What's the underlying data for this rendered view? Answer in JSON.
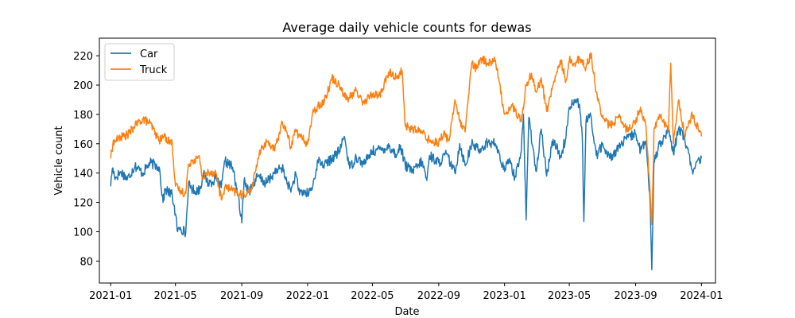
{
  "chart_data": {
    "type": "line",
    "title": "Average daily vehicle counts for dewas",
    "xlabel": "Date",
    "ylabel": "Vehicle count",
    "xlim": [
      "2020-12-11",
      "2024-01-27"
    ],
    "ylim": [
      65,
      232
    ],
    "x_ticks": [
      "2021-01",
      "2021-05",
      "2021-09",
      "2022-01",
      "2022-05",
      "2022-09",
      "2023-01",
      "2023-05",
      "2023-09",
      "2024-01"
    ],
    "y_ticks": [
      80,
      100,
      120,
      140,
      160,
      180,
      200,
      220
    ],
    "grid": false,
    "legend_position": "upper left",
    "x_start": "2021-01-01",
    "x_end": "2024-01-01",
    "series": [
      {
        "name": "Car",
        "color": "#1f77b4",
        "points": [
          [
            "2021-01-01",
            131
          ],
          [
            "2021-01-04",
            143
          ],
          [
            "2021-01-10",
            137
          ],
          [
            "2021-01-20",
            141
          ],
          [
            "2021-02-01",
            136
          ],
          [
            "2021-02-15",
            145
          ],
          [
            "2021-03-01",
            140
          ],
          [
            "2021-03-15",
            147
          ],
          [
            "2021-04-01",
            144
          ],
          [
            "2021-04-08",
            120
          ],
          [
            "2021-04-12",
            129
          ],
          [
            "2021-04-25",
            125
          ],
          [
            "2021-05-01",
            112
          ],
          [
            "2021-05-05",
            100
          ],
          [
            "2021-05-10",
            103
          ],
          [
            "2021-05-20",
            99
          ],
          [
            "2021-05-25",
            132
          ],
          [
            "2021-06-05",
            128
          ],
          [
            "2021-06-15",
            129
          ],
          [
            "2021-06-22",
            140
          ],
          [
            "2021-07-01",
            133
          ],
          [
            "2021-07-15",
            136
          ],
          [
            "2021-07-25",
            130
          ],
          [
            "2021-08-01",
            148
          ],
          [
            "2021-08-15",
            144
          ],
          [
            "2021-08-25",
            125
          ],
          [
            "2021-09-01",
            106
          ],
          [
            "2021-09-05",
            134
          ],
          [
            "2021-09-15",
            128
          ],
          [
            "2021-10-01",
            138
          ],
          [
            "2021-10-15",
            133
          ],
          [
            "2021-11-01",
            140
          ],
          [
            "2021-11-15",
            144
          ],
          [
            "2021-11-20",
            137
          ],
          [
            "2021-11-25",
            133
          ],
          [
            "2021-12-01",
            127
          ],
          [
            "2021-12-10",
            140
          ],
          [
            "2021-12-15",
            128
          ],
          [
            "2022-01-01",
            126
          ],
          [
            "2022-01-10",
            130
          ],
          [
            "2022-01-20",
            149
          ],
          [
            "2022-02-01",
            145
          ],
          [
            "2022-02-15",
            150
          ],
          [
            "2022-03-01",
            155
          ],
          [
            "2022-03-10",
            165
          ],
          [
            "2022-03-20",
            143
          ],
          [
            "2022-04-01",
            151
          ],
          [
            "2022-04-15",
            146
          ],
          [
            "2022-05-01",
            155
          ],
          [
            "2022-05-15",
            156
          ],
          [
            "2022-06-01",
            158
          ],
          [
            "2022-06-15",
            152
          ],
          [
            "2022-06-22",
            159
          ],
          [
            "2022-07-01",
            145
          ],
          [
            "2022-07-15",
            141
          ],
          [
            "2022-08-01",
            148
          ],
          [
            "2022-08-10",
            135
          ],
          [
            "2022-08-15",
            152
          ],
          [
            "2022-09-01",
            147
          ],
          [
            "2022-09-15",
            153
          ],
          [
            "2022-10-01",
            140
          ],
          [
            "2022-10-10",
            160
          ],
          [
            "2022-10-20",
            145
          ],
          [
            "2022-11-01",
            160
          ],
          [
            "2022-11-15",
            156
          ],
          [
            "2022-12-01",
            161
          ],
          [
            "2022-12-15",
            160
          ],
          [
            "2023-01-01",
            141
          ],
          [
            "2023-01-10",
            150
          ],
          [
            "2023-01-20",
            137
          ],
          [
            "2023-02-01",
            155
          ],
          [
            "2023-02-05",
            180
          ],
          [
            "2023-02-10",
            108
          ],
          [
            "2023-02-15",
            178
          ],
          [
            "2023-02-25",
            151
          ],
          [
            "2023-03-01",
            141
          ],
          [
            "2023-03-10",
            170
          ],
          [
            "2023-03-20",
            138
          ],
          [
            "2023-04-01",
            163
          ],
          [
            "2023-04-15",
            151
          ],
          [
            "2023-04-25",
            165
          ],
          [
            "2023-05-01",
            185
          ],
          [
            "2023-05-10",
            190
          ],
          [
            "2023-05-20",
            187
          ],
          [
            "2023-05-25",
            165
          ],
          [
            "2023-05-28",
            107
          ],
          [
            "2023-06-01",
            175
          ],
          [
            "2023-06-10",
            179
          ],
          [
            "2023-06-20",
            152
          ],
          [
            "2023-07-01",
            159
          ],
          [
            "2023-07-15",
            150
          ],
          [
            "2023-08-01",
            158
          ],
          [
            "2023-08-15",
            163
          ],
          [
            "2023-09-01",
            167
          ],
          [
            "2023-09-10",
            155
          ],
          [
            "2023-09-20",
            162
          ],
          [
            "2023-09-28",
            118
          ],
          [
            "2023-10-01",
            74
          ],
          [
            "2023-10-05",
            148
          ],
          [
            "2023-10-15",
            160
          ],
          [
            "2023-11-01",
            168
          ],
          [
            "2023-11-10",
            153
          ],
          [
            "2023-11-20",
            171
          ],
          [
            "2023-12-01",
            163
          ],
          [
            "2023-12-15",
            142
          ],
          [
            "2024-01-01",
            150
          ]
        ]
      },
      {
        "name": "Truck",
        "color": "#ff7f0e",
        "points": [
          [
            "2021-01-01",
            150
          ],
          [
            "2021-01-05",
            160
          ],
          [
            "2021-01-15",
            164
          ],
          [
            "2021-02-01",
            166
          ],
          [
            "2021-02-15",
            172
          ],
          [
            "2021-03-01",
            177
          ],
          [
            "2021-03-15",
            174
          ],
          [
            "2021-04-01",
            162
          ],
          [
            "2021-04-10",
            165
          ],
          [
            "2021-04-25",
            160
          ],
          [
            "2021-05-01",
            131
          ],
          [
            "2021-05-10",
            128
          ],
          [
            "2021-05-20",
            126
          ],
          [
            "2021-05-25",
            146
          ],
          [
            "2021-06-01",
            149
          ],
          [
            "2021-06-15",
            150
          ],
          [
            "2021-06-20",
            136
          ],
          [
            "2021-07-01",
            141
          ],
          [
            "2021-07-15",
            140
          ],
          [
            "2021-07-25",
            122
          ],
          [
            "2021-08-01",
            131
          ],
          [
            "2021-08-15",
            128
          ],
          [
            "2021-09-01",
            125
          ],
          [
            "2021-09-10",
            126
          ],
          [
            "2021-09-20",
            130
          ],
          [
            "2021-10-01",
            150
          ],
          [
            "2021-10-10",
            158
          ],
          [
            "2021-10-20",
            162
          ],
          [
            "2021-11-01",
            155
          ],
          [
            "2021-11-15",
            175
          ],
          [
            "2021-11-25",
            165
          ],
          [
            "2021-12-01",
            158
          ],
          [
            "2021-12-10",
            170
          ],
          [
            "2021-12-15",
            166
          ],
          [
            "2022-01-01",
            160
          ],
          [
            "2022-01-10",
            180
          ],
          [
            "2022-01-20",
            186
          ],
          [
            "2022-02-01",
            189
          ],
          [
            "2022-02-15",
            205
          ],
          [
            "2022-03-01",
            200
          ],
          [
            "2022-03-15",
            190
          ],
          [
            "2022-04-01",
            196
          ],
          [
            "2022-04-15",
            188
          ],
          [
            "2022-05-01",
            194
          ],
          [
            "2022-05-15",
            193
          ],
          [
            "2022-06-01",
            209
          ],
          [
            "2022-06-15",
            205
          ],
          [
            "2022-06-25",
            210
          ],
          [
            "2022-07-01",
            172
          ],
          [
            "2022-07-15",
            170
          ],
          [
            "2022-08-01",
            168
          ],
          [
            "2022-08-15",
            162
          ],
          [
            "2022-09-01",
            161
          ],
          [
            "2022-09-10",
            167
          ],
          [
            "2022-09-20",
            162
          ],
          [
            "2022-10-01",
            190
          ],
          [
            "2022-10-10",
            175
          ],
          [
            "2022-10-20",
            168
          ],
          [
            "2022-11-01",
            215
          ],
          [
            "2022-11-10",
            211
          ],
          [
            "2022-11-20",
            218
          ],
          [
            "2022-12-01",
            215
          ],
          [
            "2022-12-15",
            217
          ],
          [
            "2023-01-01",
            180
          ],
          [
            "2023-01-15",
            186
          ],
          [
            "2023-02-01",
            175
          ],
          [
            "2023-02-10",
            200
          ],
          [
            "2023-02-20",
            208
          ],
          [
            "2023-03-01",
            195
          ],
          [
            "2023-03-10",
            205
          ],
          [
            "2023-03-20",
            182
          ],
          [
            "2023-04-01",
            200
          ],
          [
            "2023-04-15",
            217
          ],
          [
            "2023-04-25",
            203
          ],
          [
            "2023-05-01",
            217
          ],
          [
            "2023-05-10",
            215
          ],
          [
            "2023-05-20",
            218
          ],
          [
            "2023-06-01",
            212
          ],
          [
            "2023-06-10",
            222
          ],
          [
            "2023-06-20",
            195
          ],
          [
            "2023-07-01",
            178
          ],
          [
            "2023-07-15",
            172
          ],
          [
            "2023-08-01",
            178
          ],
          [
            "2023-08-15",
            170
          ],
          [
            "2023-09-01",
            175
          ],
          [
            "2023-09-10",
            185
          ],
          [
            "2023-09-20",
            172
          ],
          [
            "2023-09-28",
            125
          ],
          [
            "2023-10-01",
            105
          ],
          [
            "2023-10-05",
            170
          ],
          [
            "2023-10-15",
            180
          ],
          [
            "2023-11-01",
            170
          ],
          [
            "2023-11-05",
            215
          ],
          [
            "2023-11-10",
            160
          ],
          [
            "2023-11-20",
            190
          ],
          [
            "2023-12-01",
            165
          ],
          [
            "2023-12-15",
            180
          ],
          [
            "2024-01-01",
            165
          ]
        ]
      }
    ]
  }
}
